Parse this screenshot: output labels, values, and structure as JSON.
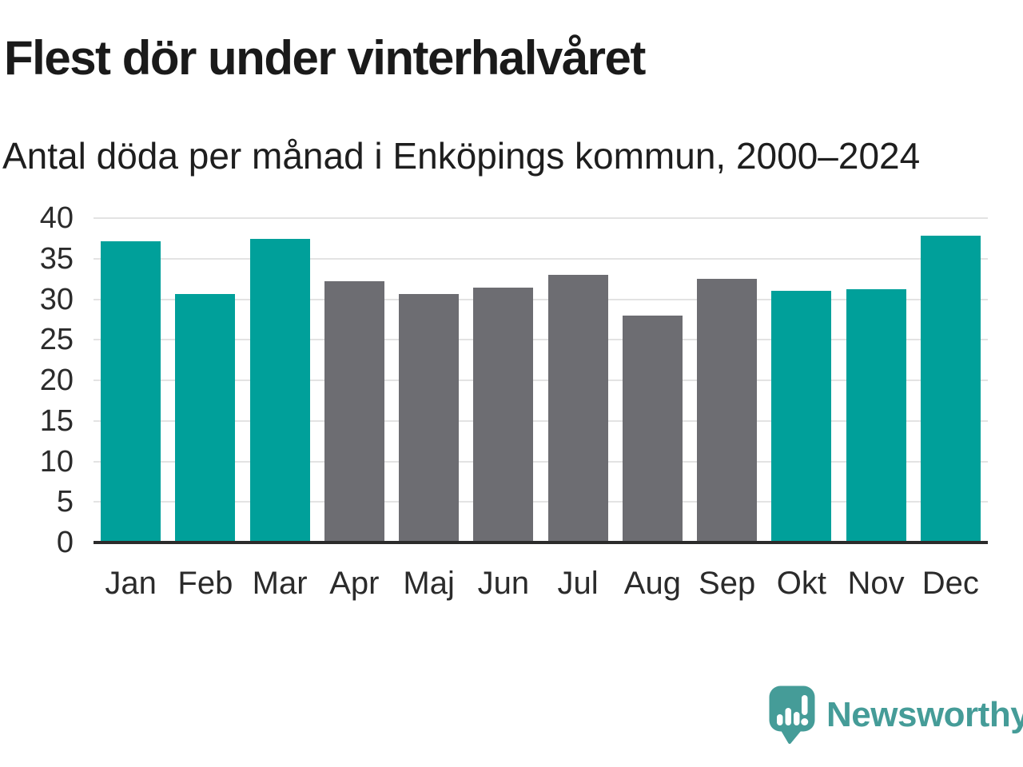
{
  "header": {
    "title": "Flest dör under vinterhalvåret",
    "subtitle": "Antal döda per månad i Enköpings kommun, 2000–2024"
  },
  "chart_data": {
    "type": "bar",
    "title": "Flest dör under vinterhalvåret",
    "subtitle": "Antal döda per månad i Enköpings kommun, 2000–2024",
    "categories": [
      "Jan",
      "Feb",
      "Mar",
      "Apr",
      "Maj",
      "Jun",
      "Jul",
      "Aug",
      "Sep",
      "Okt",
      "Nov",
      "Dec"
    ],
    "values": [
      37.1,
      30.6,
      37.4,
      32.2,
      30.6,
      31.4,
      33.0,
      28.0,
      32.5,
      31.0,
      31.2,
      37.8
    ],
    "bar_color_keys": [
      "teal",
      "teal",
      "teal",
      "gray",
      "gray",
      "gray",
      "gray",
      "gray",
      "gray",
      "teal",
      "teal",
      "teal"
    ],
    "colors": {
      "teal": "#00a09a",
      "gray": "#6d6d72"
    },
    "xlabel": "",
    "ylabel": "",
    "ylim": [
      0,
      40
    ],
    "yticks": [
      0,
      5,
      10,
      15,
      20,
      25,
      30,
      35,
      40
    ],
    "grid": "horizontal",
    "legend": "none"
  },
  "footer": {
    "brand": "Newsworthy"
  }
}
